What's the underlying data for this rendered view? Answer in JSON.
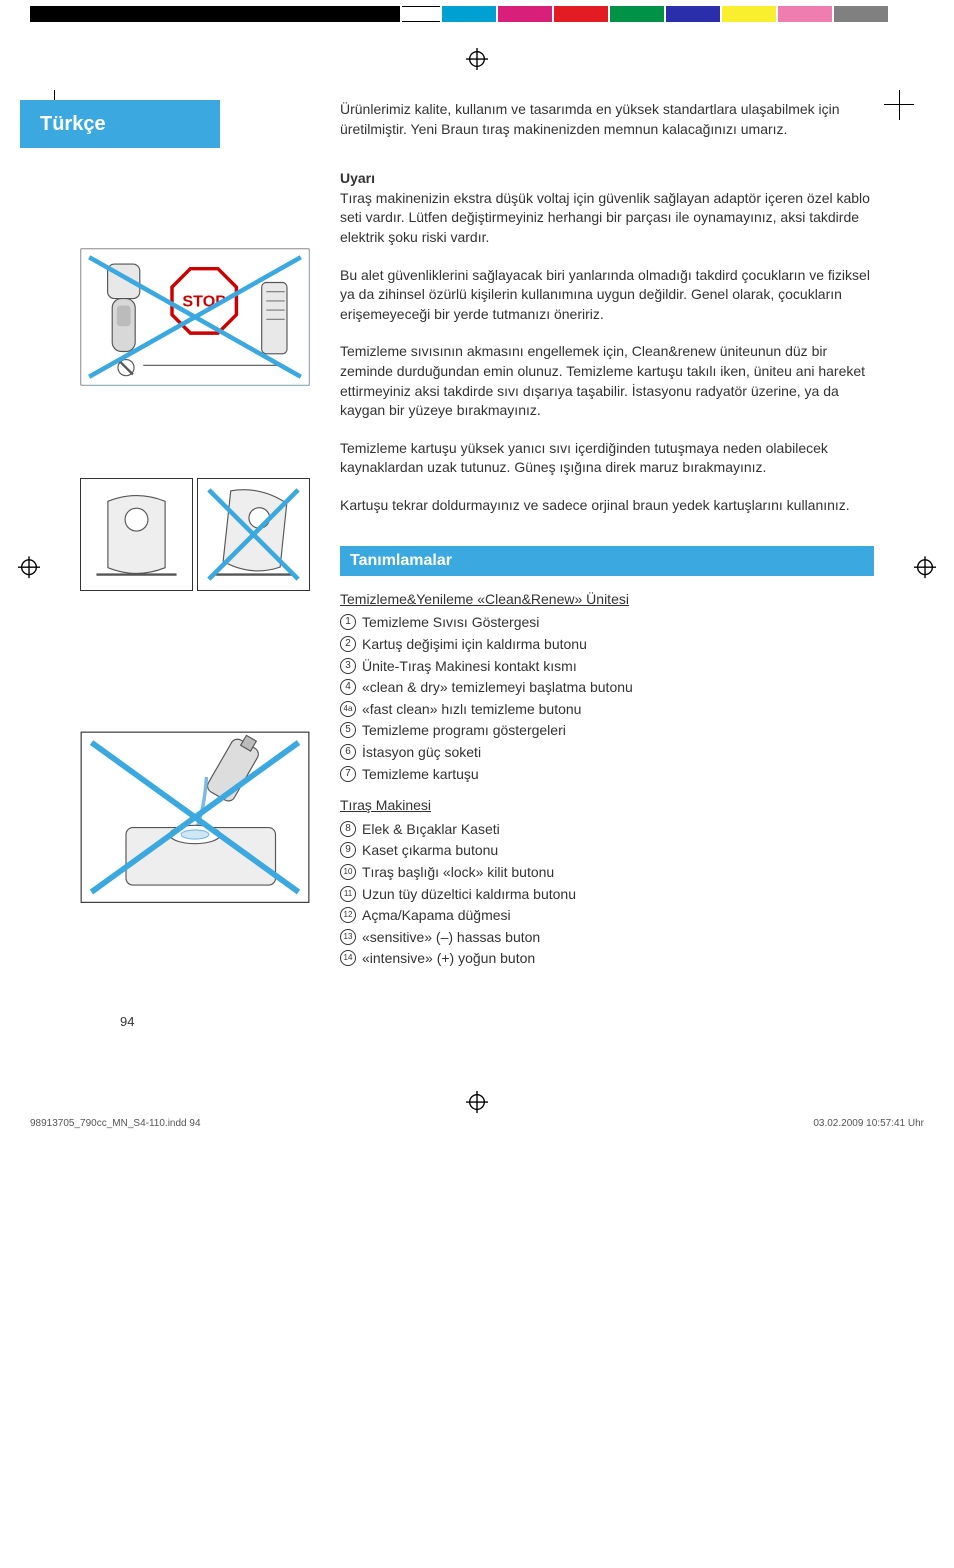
{
  "colors": {
    "accent_bg": "#3ba9e0",
    "accent_fg": "#ffffff",
    "body_text": "#333333",
    "rule": "#666666",
    "illus_border": "#333333",
    "illus_shadow": "#7ec6e6",
    "x_color": "#3ba9e0"
  },
  "lang_label": "Türkçe",
  "intro": "Ürünlerimiz kalite, kullanım ve tasarımda en yüksek standartlara ulaşabilmek için üretilmiştir. Yeni Braun tıraş makinenizden memnun kalacağınızı umarız.",
  "warning_heading": "Uyarı",
  "warning_p1": "Tıraş makinenizin ekstra düşük voltaj için güvenlik sağlayan adaptör içeren özel kablo seti vardır. Lütfen değiştirmeyiniz herhangi bir parçası ile oynamayınız, aksi takdirde elektrik şoku riski vardır.",
  "warning_p2": "Bu alet güvenliklerini sağlayacak biri yanlarında olmadığı takdird çocukların ve fiziksel ya da zihinsel özürlü kişilerin kullanımına uygun değildir. Genel olarak, çocukların erişemeyeceği bir yerde tutmanızı öneririz.",
  "warning_p3": "Temizleme sıvısının akmasını engellemek için, Clean&renew üniteunun düz bir zeminde durduğundan emin olunuz. Temizleme kartuşu takılı iken, üniteu ani hareket ettirmeyiniz aksi takdirde sıvı dışarıya taşabilir. İstasyonu radyatör üzerine, ya da kaygan bir yüzeye bırakmayınız.",
  "warning_p4": "Temizleme kartuşu yüksek yanıcı sıvı içerdiğinden tutuşmaya neden olabilecek kaynaklardan uzak tutunuz. Güneş ışığına direk maruz bırakmayınız.",
  "warning_p5": "Kartuşu tekrar doldurmayınız ve sadece orjinal braun yedek kartuşlarını kullanınız.",
  "section_heading": "Tanımlamalar",
  "unit_subhead": "Temizleme&Yenileme «Clean&Renew» Ünitesi",
  "unit_items": [
    {
      "n": "1",
      "t": "Temizleme Sıvısı Göstergesi"
    },
    {
      "n": "2",
      "t": "Kartuş değişimi için kaldırma butonu"
    },
    {
      "n": "3",
      "t": "Ünite-Tıraş Makinesi kontakt kısmı"
    },
    {
      "n": "4",
      "t": "«clean & dry» temizlemeyi başlatma butonu"
    },
    {
      "n": "4a",
      "t": "«fast clean» hızlı temizleme butonu"
    },
    {
      "n": "5",
      "t": "Temizleme programı göstergeleri"
    },
    {
      "n": "6",
      "t": "İstasyon güç soketi"
    },
    {
      "n": "7",
      "t": "Temizleme kartuşu"
    }
  ],
  "shaver_subhead": "Tıraş Makinesi",
  "shaver_items": [
    {
      "n": "8",
      "t": "Elek & Bıçaklar Kaseti"
    },
    {
      "n": "9",
      "t": "Kaset çıkarma butonu"
    },
    {
      "n": "10",
      "t": "Tıraş başlığı «lock» kilit butonu"
    },
    {
      "n": "11",
      "t": "Uzun tüy düzeltici kaldırma butonu"
    },
    {
      "n": "12",
      "t": "Açma/Kapama düğmesi"
    },
    {
      "n": "13",
      "t": "«sensitive» (–) hassas buton"
    },
    {
      "n": "14",
      "t": "«intensive» (+) yoğun buton"
    }
  ],
  "page_number": "94",
  "footer_left": "98913705_790cc_MN_S4-110.indd   94",
  "footer_right": "03.02.2009   10:57:41 Uhr"
}
